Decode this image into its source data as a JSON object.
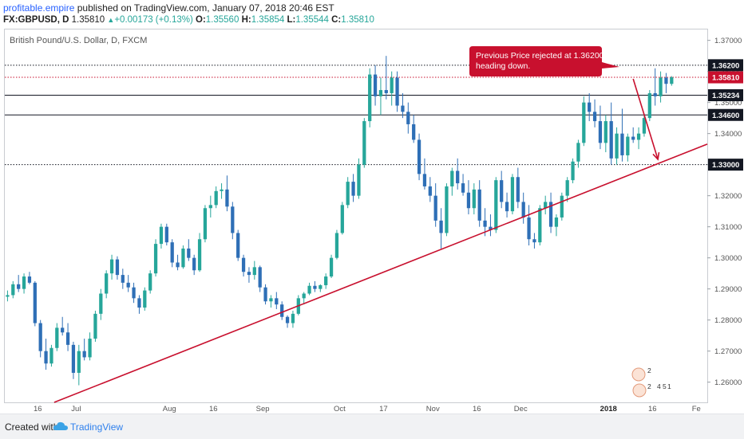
{
  "header": {
    "author": "profitable.empire",
    "published_text": "published on TradingView.com, January 07, 2018 20:46 EST",
    "symbol_line": "FX:GBPUSD, D",
    "last": "1.35810",
    "change_arrow": "▲",
    "change": "+0.00173 (+0.13%)",
    "o_label": "O:",
    "o_value": "1.35560",
    "h_label": "H:",
    "h_value": "1.35854",
    "l_label": "L:",
    "l_value": "1.35544",
    "c_label": "C:",
    "c_value": "1.35810"
  },
  "footer": {
    "created_with": "Created with",
    "brand": "TradingView",
    "brand_icon": "tradingview-cloud-icon"
  },
  "colors": {
    "up": "#26a69a",
    "down": "#2e6fb6",
    "trendline": "#c8102e",
    "callout_bg": "#c8102e",
    "price_tag": "#131722",
    "last_price_line": "#c8102e"
  },
  "chart_data": {
    "type": "candlestick",
    "title": "British Pound/U.S. Dollar, D, FXCM",
    "ylim": [
      1.2535,
      1.3735
    ],
    "y_ticks": [
      "1.37000",
      "1.36000",
      "1.35000",
      "1.34000",
      "1.33000",
      "1.32000",
      "1.31000",
      "1.30000",
      "1.29000",
      "1.28000",
      "1.27000",
      "1.26000"
    ],
    "x_ticks": [
      "16",
      "Jul",
      "Aug",
      "16",
      "Sep",
      "Oct",
      "17",
      "Nov",
      "16",
      "Dec",
      "2018",
      "16",
      "Fe"
    ],
    "x_tick_index": [
      6,
      13,
      30,
      38,
      47,
      61,
      69,
      78,
      86,
      94,
      110,
      118,
      126
    ],
    "n_slots": 128,
    "horizontal_levels": [
      {
        "value": 1.362,
        "label": "1.36200",
        "style": "dotted",
        "tag": "dark"
      },
      {
        "value": 1.3581,
        "label": "1.35810",
        "style": "last",
        "tag": "red"
      },
      {
        "value": 1.35234,
        "label": "1.35234",
        "style": "solid",
        "tag": "dark"
      },
      {
        "value": 1.346,
        "label": "1.34600",
        "style": "solid",
        "tag": "dark"
      },
      {
        "value": 1.33,
        "label": "1.33000",
        "style": "dotted",
        "tag": "dark"
      }
    ],
    "trendline": {
      "x1": 9,
      "y1": 1.2535,
      "x2": 128,
      "y2": 1.3366
    },
    "projection_arrow": {
      "x1": 114,
      "y1": 1.3576,
      "x2": 118.5,
      "y2": 1.3317
    },
    "annotation": "Previous Price rejected at 1.36200 and heading down.",
    "watermark_badges": [
      "2",
      "2",
      "4",
      "5",
      "1"
    ],
    "candles": [
      [
        1.2875,
        1.2895,
        1.286,
        1.288
      ],
      [
        1.288,
        1.2925,
        1.287,
        1.2915
      ],
      [
        1.2915,
        1.2945,
        1.289,
        1.29
      ],
      [
        1.29,
        1.295,
        1.2885,
        1.294
      ],
      [
        1.294,
        1.2955,
        1.2915,
        1.292
      ],
      [
        1.292,
        1.2925,
        1.278,
        1.279
      ],
      [
        1.279,
        1.28,
        1.268,
        1.27
      ],
      [
        1.27,
        1.274,
        1.264,
        1.266
      ],
      [
        1.266,
        1.272,
        1.265,
        1.271
      ],
      [
        1.271,
        1.279,
        1.27,
        1.2775
      ],
      [
        1.2775,
        1.281,
        1.275,
        1.276
      ],
      [
        1.276,
        1.279,
        1.27,
        1.272
      ],
      [
        1.272,
        1.273,
        1.261,
        1.263
      ],
      [
        1.263,
        1.272,
        1.259,
        1.27
      ],
      [
        1.27,
        1.274,
        1.267,
        1.268
      ],
      [
        1.268,
        1.276,
        1.267,
        1.274
      ],
      [
        1.274,
        1.283,
        1.273,
        1.282
      ],
      [
        1.282,
        1.29,
        1.28,
        1.2885
      ],
      [
        1.2885,
        1.296,
        1.287,
        1.295
      ],
      [
        1.295,
        1.301,
        1.293,
        1.2995
      ],
      [
        1.2995,
        1.3005,
        1.293,
        1.2945
      ],
      [
        1.2945,
        1.2965,
        1.29,
        1.292
      ],
      [
        1.292,
        1.2945,
        1.289,
        1.2905
      ],
      [
        1.2905,
        1.292,
        1.2855,
        1.287
      ],
      [
        1.287,
        1.288,
        1.282,
        1.284
      ],
      [
        1.284,
        1.2905,
        1.283,
        1.2895
      ],
      [
        1.2895,
        1.296,
        1.2885,
        1.295
      ],
      [
        1.295,
        1.306,
        1.294,
        1.3045
      ],
      [
        1.3045,
        1.311,
        1.303,
        1.31
      ],
      [
        1.31,
        1.311,
        1.304,
        1.305
      ],
      [
        1.305,
        1.306,
        1.297,
        1.2985
      ],
      [
        1.2985,
        1.301,
        1.296,
        1.297
      ],
      [
        1.297,
        1.304,
        1.2965,
        1.303
      ],
      [
        1.303,
        1.306,
        1.299,
        1.3
      ],
      [
        1.3,
        1.301,
        1.2945,
        1.296
      ],
      [
        1.296,
        1.308,
        1.2955,
        1.306
      ],
      [
        1.306,
        1.317,
        1.305,
        1.316
      ],
      [
        1.316,
        1.32,
        1.313,
        1.317
      ],
      [
        1.317,
        1.323,
        1.316,
        1.3215
      ],
      [
        1.3215,
        1.324,
        1.319,
        1.322
      ],
      [
        1.322,
        1.3265,
        1.315,
        1.3165
      ],
      [
        1.3165,
        1.318,
        1.306,
        1.308
      ],
      [
        1.308,
        1.309,
        1.299,
        1.3
      ],
      [
        1.3,
        1.301,
        1.294,
        1.2955
      ],
      [
        1.2955,
        1.297,
        1.292,
        1.2945
      ],
      [
        1.2945,
        1.299,
        1.293,
        1.297
      ],
      [
        1.297,
        1.2975,
        1.289,
        1.2905
      ],
      [
        1.2905,
        1.2915,
        1.285,
        1.286
      ],
      [
        1.286,
        1.288,
        1.284,
        1.287
      ],
      [
        1.287,
        1.289,
        1.2835,
        1.285
      ],
      [
        1.285,
        1.286,
        1.28,
        1.281
      ],
      [
        1.281,
        1.2815,
        1.2775,
        1.279
      ],
      [
        1.279,
        1.283,
        1.2775,
        1.282
      ],
      [
        1.282,
        1.288,
        1.2815,
        1.287
      ],
      [
        1.287,
        1.289,
        1.285,
        1.2885
      ],
      [
        1.2885,
        1.292,
        1.288,
        1.291
      ],
      [
        1.291,
        1.2925,
        1.289,
        1.29
      ],
      [
        1.29,
        1.2915,
        1.289,
        1.2912
      ],
      [
        1.2912,
        1.295,
        1.29,
        1.294
      ],
      [
        1.294,
        1.301,
        1.2935,
        1.3
      ],
      [
        1.3,
        1.309,
        1.2995,
        1.308
      ],
      [
        1.308,
        1.318,
        1.3075,
        1.317
      ],
      [
        1.317,
        1.326,
        1.316,
        1.3245
      ],
      [
        1.3245,
        1.327,
        1.318,
        1.32
      ],
      [
        1.32,
        1.332,
        1.319,
        1.33
      ],
      [
        1.33,
        1.345,
        1.329,
        1.344
      ],
      [
        1.344,
        1.361,
        1.342,
        1.359
      ],
      [
        1.359,
        1.362,
        1.349,
        1.352
      ],
      [
        1.352,
        1.358,
        1.346,
        1.354
      ],
      [
        1.354,
        1.365,
        1.351,
        1.353
      ],
      [
        1.353,
        1.36,
        1.349,
        1.358
      ],
      [
        1.358,
        1.36,
        1.347,
        1.349
      ],
      [
        1.349,
        1.353,
        1.345,
        1.347
      ],
      [
        1.347,
        1.35,
        1.34,
        1.343
      ],
      [
        1.343,
        1.346,
        1.337,
        1.338
      ],
      [
        1.338,
        1.34,
        1.325,
        1.327
      ],
      [
        1.327,
        1.332,
        1.322,
        1.323
      ],
      [
        1.323,
        1.326,
        1.318,
        1.32
      ],
      [
        1.32,
        1.324,
        1.31,
        1.312
      ],
      [
        1.312,
        1.316,
        1.303,
        1.308
      ],
      [
        1.308,
        1.324,
        1.307,
        1.323
      ],
      [
        1.323,
        1.329,
        1.32,
        1.328
      ],
      [
        1.328,
        1.332,
        1.322,
        1.324
      ],
      [
        1.324,
        1.327,
        1.32,
        1.321
      ],
      [
        1.321,
        1.325,
        1.314,
        1.316
      ],
      [
        1.316,
        1.324,
        1.314,
        1.322
      ],
      [
        1.322,
        1.325,
        1.31,
        1.312
      ],
      [
        1.312,
        1.316,
        1.307,
        1.31
      ],
      [
        1.31,
        1.314,
        1.307,
        1.309
      ],
      [
        1.309,
        1.326,
        1.308,
        1.325
      ],
      [
        1.325,
        1.328,
        1.316,
        1.318
      ],
      [
        1.318,
        1.321,
        1.313,
        1.315
      ],
      [
        1.315,
        1.327,
        1.314,
        1.326
      ],
      [
        1.326,
        1.329,
        1.316,
        1.318
      ],
      [
        1.318,
        1.321,
        1.311,
        1.313
      ],
      [
        1.313,
        1.317,
        1.304,
        1.306
      ],
      [
        1.306,
        1.308,
        1.303,
        1.305
      ],
      [
        1.305,
        1.317,
        1.304,
        1.316
      ],
      [
        1.316,
        1.32,
        1.314,
        1.318
      ],
      [
        1.318,
        1.321,
        1.308,
        1.31
      ],
      [
        1.31,
        1.314,
        1.307,
        1.313
      ],
      [
        1.313,
        1.321,
        1.312,
        1.32
      ],
      [
        1.32,
        1.326,
        1.318,
        1.325
      ],
      [
        1.325,
        1.332,
        1.324,
        1.331
      ],
      [
        1.331,
        1.338,
        1.329,
        1.337
      ],
      [
        1.337,
        1.352,
        1.336,
        1.35
      ],
      [
        1.35,
        1.353,
        1.344,
        1.347
      ],
      [
        1.347,
        1.351,
        1.342,
        1.344
      ],
      [
        1.344,
        1.349,
        1.335,
        1.337
      ],
      [
        1.337,
        1.346,
        1.334,
        1.344
      ],
      [
        1.344,
        1.35,
        1.33,
        1.332
      ],
      [
        1.332,
        1.342,
        1.33,
        1.34
      ],
      [
        1.34,
        1.348,
        1.331,
        1.333
      ],
      [
        1.333,
        1.34,
        1.331,
        1.339
      ],
      [
        1.339,
        1.342,
        1.337,
        1.338
      ],
      [
        1.338,
        1.342,
        1.335,
        1.34
      ],
      [
        1.34,
        1.346,
        1.339,
        1.345
      ],
      [
        1.345,
        1.354,
        1.344,
        1.353
      ],
      [
        1.353,
        1.361,
        1.349,
        1.352
      ],
      [
        1.352,
        1.36,
        1.35,
        1.358
      ],
      [
        1.358,
        1.3595,
        1.353,
        1.356
      ],
      [
        1.356,
        1.3585,
        1.3554,
        1.3581
      ]
    ]
  }
}
